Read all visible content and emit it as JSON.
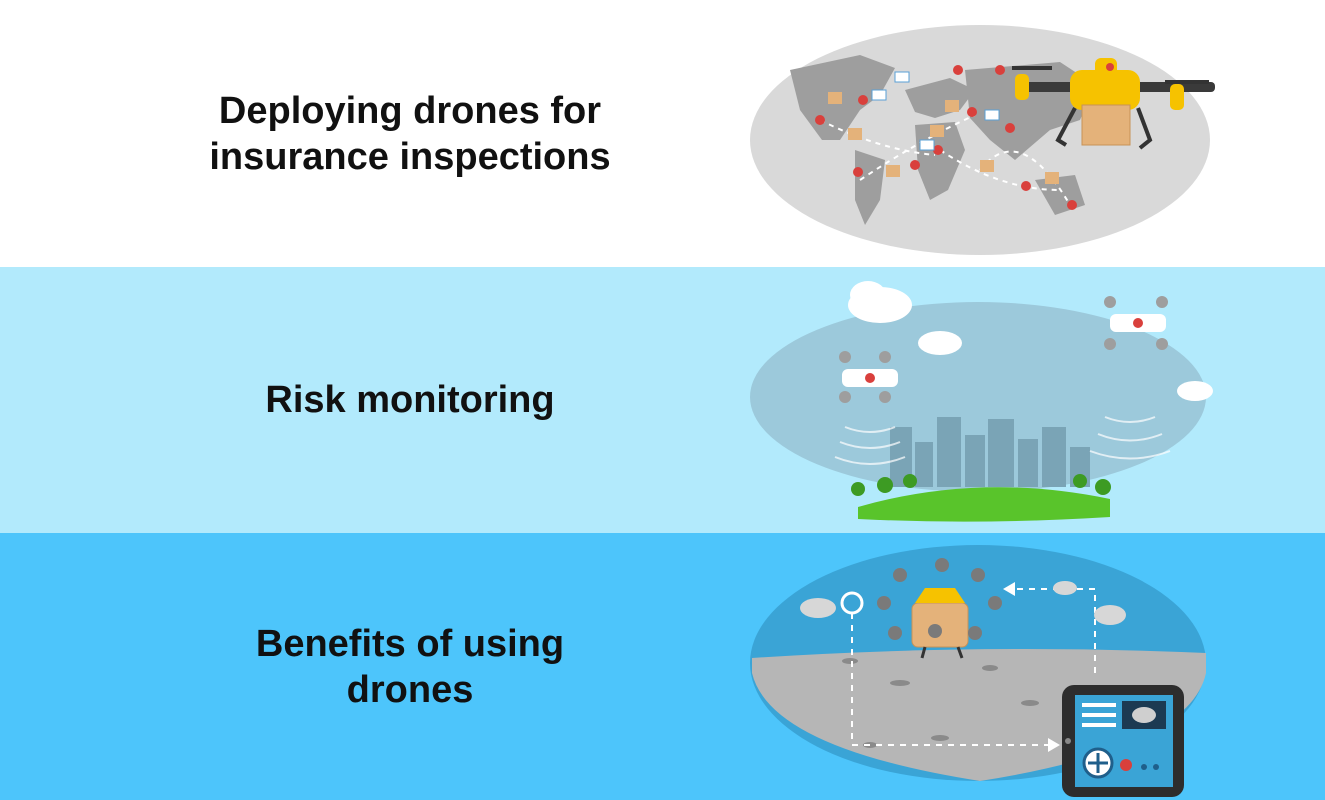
{
  "colors": {
    "band_1_bg": "#ffffff",
    "band_2_bg": "#b2eafc",
    "band_3_bg": "#4dc5fb",
    "map_oval": "#d9d9d9",
    "sky_oval_2": "#9cc9db",
    "sky_oval_3": "#3aa4d6",
    "drone_yellow": "#f6c200",
    "grass": "#59c42b",
    "pin_red": "#d9403c"
  },
  "sections": [
    {
      "title_lines": [
        "Deploying drones for",
        "insurance inspections"
      ],
      "illustration": "world-map-delivery-drone"
    },
    {
      "title_lines": [
        "Risk monitoring"
      ],
      "illustration": "city-surveillance-drones"
    },
    {
      "title_lines": [
        "Benefits of using",
        "drones"
      ],
      "illustration": "tablet-controlled-drone-route"
    }
  ]
}
